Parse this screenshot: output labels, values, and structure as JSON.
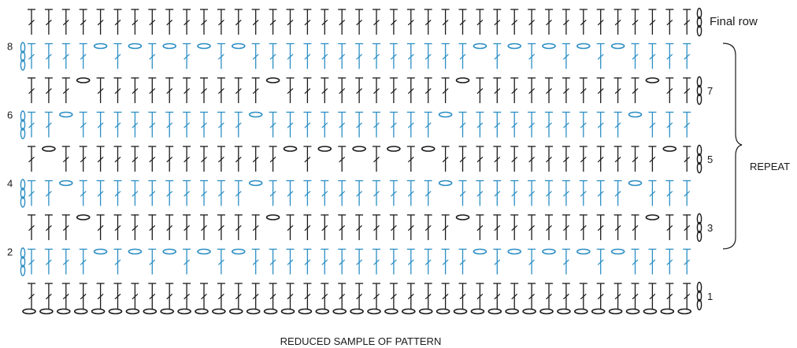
{
  "colors": {
    "black": "#1a1a1a",
    "blue": "#2b8ec4",
    "background": "#ffffff"
  },
  "labels": {
    "final_row": "Final row",
    "repeat": "REPEAT",
    "caption": "REDUCED SAMPLE OF PATTERN"
  },
  "rows": [
    {
      "row": "Final row",
      "color": "black",
      "label": "Final row",
      "label_side": "right",
      "chain_positions": []
    },
    {
      "row": "8",
      "color": "blue",
      "label": "8",
      "label_side": "left",
      "chain_positions": [
        4,
        6,
        8,
        10,
        12,
        26,
        28,
        30,
        32,
        34
      ]
    },
    {
      "row": "7",
      "color": "black",
      "label": "7",
      "label_side": "right",
      "chain_positions": [
        3,
        14,
        25,
        36
      ]
    },
    {
      "row": "6",
      "color": "blue",
      "label": "6",
      "label_side": "left",
      "chain_positions": [
        2,
        13,
        24,
        35
      ]
    },
    {
      "row": "5",
      "color": "black",
      "label": "5",
      "label_side": "right",
      "chain_positions": [
        1,
        15,
        17,
        19,
        21,
        23,
        37
      ]
    },
    {
      "row": "4",
      "color": "blue",
      "label": "4",
      "label_side": "left",
      "chain_positions": [
        2,
        13,
        24,
        35
      ]
    },
    {
      "row": "3",
      "color": "black",
      "label": "3",
      "label_side": "right",
      "chain_positions": [
        3,
        14,
        25,
        36
      ]
    },
    {
      "row": "2",
      "color": "blue",
      "label": "2",
      "label_side": "left",
      "chain_positions": [
        4,
        6,
        8,
        10,
        12,
        26,
        28,
        30,
        32,
        34
      ]
    },
    {
      "row": "1",
      "color": "black",
      "label": "1",
      "label_side": "right",
      "chain_positions": []
    }
  ],
  "repeat_rows": [
    "3",
    "4",
    "5",
    "6",
    "7",
    "8"
  ],
  "stitches_per_row": 39,
  "foundation_chains": 39
}
